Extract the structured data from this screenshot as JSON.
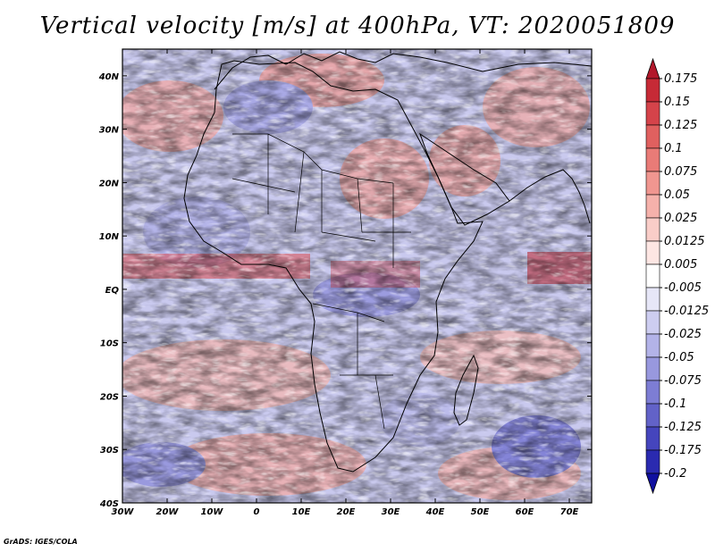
{
  "title": "Vertical velocity [m/s] at 400hPa, VT: 2020051809",
  "map": {
    "lon_ticks": [
      "30W",
      "20W",
      "10W",
      "0",
      "10E",
      "20E",
      "30E",
      "40E",
      "50E",
      "60E",
      "70E"
    ],
    "lat_ticks": [
      "40N",
      "30N",
      "20N",
      "10N",
      "EQ",
      "10S",
      "20S",
      "30S",
      "40S"
    ],
    "lon_range": [
      -30,
      75
    ],
    "lat_range": [
      -40,
      45
    ]
  },
  "colorbar": {
    "levels": [
      "0.175",
      "0.15",
      "0.125",
      "0.1",
      "0.075",
      "0.05",
      "0.025",
      "0.0125",
      "0.005",
      "-0.005",
      "-0.0125",
      "-0.025",
      "-0.05",
      "-0.075",
      "-0.1",
      "-0.125",
      "-0.175",
      "-0.2"
    ],
    "colors": [
      "#b2182b",
      "#c62a36",
      "#d5434a",
      "#e0605f",
      "#e97b77",
      "#f09690",
      "#f5b1ab",
      "#f9cdc8",
      "#fde6e3",
      "#ffffff",
      "#e6e6f7",
      "#cdcdf0",
      "#b3b3e8",
      "#9898de",
      "#7d7dd4",
      "#6262c8",
      "#4545bd",
      "#2a2ab0",
      "#1010a0"
    ]
  },
  "credit": "GrADS: IGES/COLA"
}
